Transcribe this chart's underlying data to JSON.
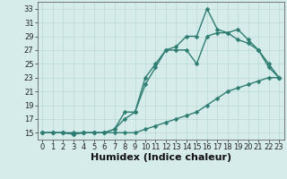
{
  "title": "",
  "xlabel": "Humidex (Indice chaleur)",
  "background_color": "#d6ecea",
  "grid_color": "#b8d8d5",
  "line_color": "#2e7d72",
  "xlim": [
    -0.5,
    23.5
  ],
  "ylim": [
    14.0,
    34.0
  ],
  "xticks": [
    0,
    1,
    2,
    3,
    4,
    5,
    6,
    7,
    8,
    9,
    10,
    11,
    12,
    13,
    14,
    15,
    16,
    17,
    18,
    19,
    20,
    21,
    22,
    23
  ],
  "yticks": [
    15,
    17,
    19,
    21,
    23,
    25,
    27,
    29,
    31,
    33
  ],
  "line1_x": [
    0,
    1,
    2,
    3,
    4,
    5,
    6,
    7,
    8,
    9,
    10,
    11,
    12,
    13,
    14,
    15,
    16,
    17,
    18,
    19,
    20,
    21,
    22,
    23
  ],
  "line1_y": [
    15,
    15,
    15,
    15,
    15,
    15,
    15,
    15,
    15,
    15,
    15.5,
    16,
    16.5,
    17,
    17.5,
    18,
    19,
    20,
    21,
    21.5,
    22,
    22.5,
    23,
    23
  ],
  "line2_x": [
    0,
    1,
    2,
    3,
    4,
    5,
    6,
    7,
    8,
    9,
    10,
    11,
    12,
    13,
    14,
    15,
    16,
    17,
    18,
    19,
    20,
    21,
    22,
    23
  ],
  "line2_y": [
    15,
    15,
    15,
    14.8,
    15,
    15,
    15,
    15.5,
    18,
    18,
    22,
    24.5,
    27,
    27,
    27,
    25,
    29,
    29.5,
    29.5,
    28.5,
    28,
    27,
    25,
    23
  ],
  "line3_x": [
    0,
    1,
    2,
    3,
    4,
    5,
    6,
    7,
    8,
    9,
    10,
    11,
    12,
    13,
    14,
    15,
    16,
    17,
    18,
    19,
    20,
    21,
    22,
    23
  ],
  "line3_y": [
    15,
    15,
    15,
    14.8,
    15,
    15,
    15,
    15.5,
    17,
    18,
    23,
    25,
    27,
    27.5,
    29,
    29,
    33,
    30,
    29.5,
    30,
    28.5,
    27,
    24.5,
    23
  ],
  "marker_size": 2.5,
  "line_width": 1.0,
  "font_size_label": 7,
  "font_size_tick": 6
}
